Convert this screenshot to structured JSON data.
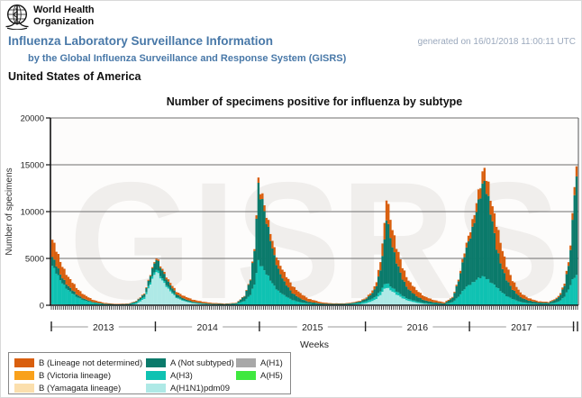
{
  "brand": {
    "org_name": "World Health\nOrganization"
  },
  "header": {
    "title": "Influenza Laboratory Surveillance Information",
    "subtitle": "by the Global Influenza Surveillance and Response System (GISRS)",
    "generated": "generated on 16/01/2018 11:00:11 UTC",
    "country": "United States of America"
  },
  "colors": {
    "link_blue": "#4878A8",
    "generated_gray": "#9AA8BC",
    "plot_background": "#fdfcfb",
    "gridline": "#6e6e6e",
    "axis": "#111111",
    "watermark": "#f0eeec",
    "year_axis": "#999999"
  },
  "chart_data": {
    "type": "bar",
    "stacked": true,
    "title": "Number of specimens positive for influenza by subtype",
    "xlabel": "Weeks",
    "ylabel": "Number of specimens",
    "ylim": [
      0,
      20000
    ],
    "y_ticks": [
      0,
      5000,
      10000,
      15000,
      20000
    ],
    "grid": true,
    "watermark": "GISRS",
    "x_year_labels": [
      "2013",
      "2014",
      "2015",
      "2016",
      "2017"
    ],
    "year_boundary_weeks": [
      0,
      52,
      104,
      157,
      209,
      261
    ],
    "total_weeks": 263,
    "series_order": [
      "a_h1n1pdm09",
      "a_h3",
      "a_not_subtyped",
      "b_lineage_not_determined"
    ],
    "series_colors": {
      "b_lineage_not_determined": "#D95F0E",
      "b_victoria": "#F9A11B",
      "b_yamagata": "#FBDFAD",
      "a_not_subtyped": "#0B7A6B",
      "a_h3": "#0FC2B2",
      "a_h1n1pdm09": "#AEE9E6",
      "a_h1": "#A8A8A8",
      "a_h5": "#3FE83F"
    },
    "samples": {
      "week_index": [
        0,
        4,
        8,
        12,
        16,
        20,
        26,
        32,
        38,
        42,
        46,
        49,
        52,
        55,
        58,
        62,
        66,
        70,
        75,
        80,
        86,
        92,
        96,
        99,
        101,
        103,
        105,
        107,
        110,
        113,
        116,
        120,
        124,
        128,
        134,
        140,
        146,
        150,
        154,
        157,
        160,
        162,
        164,
        165,
        166,
        167,
        168,
        170,
        172,
        175,
        178,
        182,
        186,
        190,
        196,
        200,
        203,
        206,
        208,
        210,
        212,
        214,
        216,
        218,
        220,
        222,
        224,
        227,
        230,
        234,
        238,
        243,
        248,
        252,
        254,
        256,
        258,
        259,
        260,
        261,
        262
      ],
      "a_h1n1pdm09": [
        100,
        80,
        50,
        30,
        20,
        10,
        10,
        5,
        10,
        140,
        700,
        2300,
        3600,
        2700,
        1700,
        800,
        420,
        220,
        110,
        60,
        30,
        20,
        15,
        15,
        20,
        30,
        30,
        30,
        30,
        30,
        25,
        20,
        15,
        10,
        10,
        10,
        15,
        40,
        110,
        220,
        450,
        700,
        1100,
        1400,
        1700,
        1900,
        1800,
        1500,
        1150,
        750,
        480,
        260,
        140,
        80,
        40,
        25,
        20,
        25,
        30,
        30,
        35,
        40,
        40,
        40,
        35,
        30,
        25,
        20,
        15,
        10,
        10,
        10,
        10,
        10,
        10,
        15,
        20,
        25,
        30,
        35,
        40
      ],
      "a_h3": [
        4100,
        2600,
        1550,
        900,
        500,
        260,
        110,
        70,
        90,
        150,
        210,
        240,
        260,
        220,
        170,
        110,
        80,
        60,
        50,
        50,
        60,
        130,
        450,
        1100,
        2200,
        4700,
        4100,
        3300,
        2300,
        1500,
        1000,
        550,
        300,
        170,
        90,
        70,
        80,
        110,
        150,
        200,
        260,
        320,
        400,
        430,
        460,
        480,
        460,
        400,
        340,
        260,
        200,
        140,
        100,
        80,
        60,
        300,
        900,
        1700,
        2100,
        2400,
        2700,
        2900,
        3000,
        2700,
        2300,
        1900,
        1500,
        1000,
        650,
        350,
        200,
        130,
        120,
        300,
        500,
        900,
        1700,
        2200,
        2700,
        3000,
        3100
      ],
      "a_not_subtyped": [
        950,
        620,
        420,
        260,
        150,
        90,
        40,
        30,
        45,
        120,
        300,
        700,
        1050,
        850,
        550,
        300,
        170,
        110,
        70,
        50,
        40,
        70,
        520,
        1600,
        3600,
        8100,
        7100,
        5500,
        3700,
        2300,
        1400,
        750,
        380,
        200,
        90,
        60,
        60,
        90,
        160,
        280,
        600,
        1100,
        2300,
        3300,
        4600,
        7000,
        6200,
        4500,
        3100,
        1800,
        1050,
        550,
        300,
        170,
        90,
        450,
        1700,
        3500,
        4600,
        5800,
        7300,
        8700,
        10200,
        8700,
        6600,
        4100,
        3000,
        1800,
        1000,
        500,
        280,
        160,
        130,
        350,
        600,
        1200,
        2600,
        3900,
        6200,
        9200,
        10200
      ],
      "b_lineage_not_determined": [
        1850,
        1350,
        980,
        680,
        430,
        240,
        90,
        40,
        30,
        50,
        80,
        110,
        150,
        190,
        230,
        270,
        280,
        230,
        150,
        90,
        50,
        40,
        60,
        90,
        200,
        550,
        600,
        650,
        800,
        900,
        950,
        800,
        550,
        330,
        140,
        60,
        50,
        60,
        80,
        120,
        250,
        450,
        900,
        1300,
        1700,
        2200,
        2100,
        1900,
        1600,
        1250,
        950,
        650,
        420,
        260,
        120,
        90,
        180,
        400,
        600,
        800,
        950,
        1100,
        1400,
        1500,
        1600,
        2500,
        2200,
        1500,
        950,
        500,
        260,
        130,
        80,
        120,
        160,
        250,
        400,
        500,
        700,
        900,
        1050
      ],
      "b_victoria": 0,
      "b_yamagata": 0,
      "a_h1": 0,
      "a_h5": 0
    }
  },
  "legend": {
    "columns": [
      [
        {
          "label": "B (Lineage not determined)",
          "color": "#D95F0E"
        },
        {
          "label": "B (Victoria lineage)",
          "color": "#F9A11B"
        },
        {
          "label": "B (Yamagata lineage)",
          "color": "#FBDFAD"
        }
      ],
      [
        {
          "label": "A (Not subtyped)",
          "color": "#0B7A6B"
        },
        {
          "label": "A(H3)",
          "color": "#0FC2B2"
        },
        {
          "label": "A(H1N1)pdm09",
          "color": "#AEE9E6"
        }
      ],
      [
        {
          "label": "A(H1)",
          "color": "#A8A8A8"
        },
        {
          "label": "A(H5)",
          "color": "#3FE83F"
        }
      ]
    ]
  }
}
